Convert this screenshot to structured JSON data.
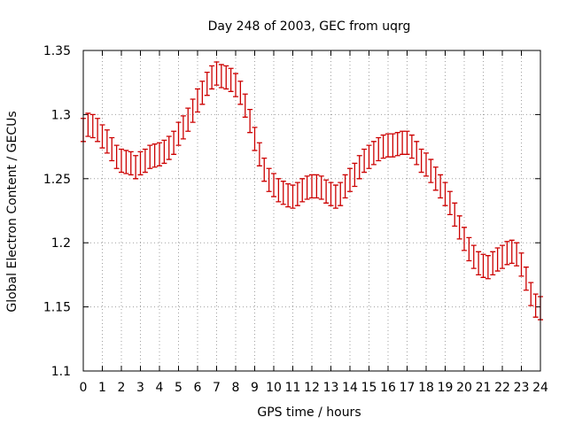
{
  "chart_data": {
    "type": "line",
    "title": "Day 248 of 2003, GEC from uqrg",
    "xlabel": "GPS time / hours",
    "ylabel": "Global Electron Content / GECUs",
    "xlim": [
      0,
      24
    ],
    "ylim": [
      1.1,
      1.35
    ],
    "xticks": [
      "0",
      "1",
      "2",
      "3",
      "4",
      "5",
      "6",
      "7",
      "8",
      "9",
      "10",
      "11",
      "12",
      "13",
      "14",
      "15",
      "16",
      "17",
      "18",
      "19",
      "20",
      "21",
      "22",
      "23",
      "24"
    ],
    "yticks": [
      "1.1",
      "1.15",
      "1.2",
      "1.25",
      "1.3",
      "1.35"
    ],
    "series_color": "#cc0000",
    "error_half_width": 0.009,
    "series": [
      {
        "name": "GEC",
        "x": [
          0.0,
          0.25,
          0.5,
          0.75,
          1.0,
          1.25,
          1.5,
          1.75,
          2.0,
          2.25,
          2.5,
          2.75,
          3.0,
          3.25,
          3.5,
          3.75,
          4.0,
          4.25,
          4.5,
          4.75,
          5.0,
          5.25,
          5.5,
          5.75,
          6.0,
          6.25,
          6.5,
          6.75,
          7.0,
          7.25,
          7.5,
          7.75,
          8.0,
          8.25,
          8.5,
          8.75,
          9.0,
          9.25,
          9.5,
          9.75,
          10.0,
          10.25,
          10.5,
          10.75,
          11.0,
          11.25,
          11.5,
          11.75,
          12.0,
          12.25,
          12.5,
          12.75,
          13.0,
          13.25,
          13.5,
          13.75,
          14.0,
          14.25,
          14.5,
          14.75,
          15.0,
          15.25,
          15.5,
          15.75,
          16.0,
          16.25,
          16.5,
          16.75,
          17.0,
          17.25,
          17.5,
          17.75,
          18.0,
          18.25,
          18.5,
          18.75,
          19.0,
          19.25,
          19.5,
          19.75,
          20.0,
          20.25,
          20.5,
          20.75,
          21.0,
          21.25,
          21.5,
          21.75,
          22.0,
          22.25,
          22.5,
          22.75,
          23.0,
          23.25,
          23.5,
          23.75,
          24.0
        ],
        "values": [
          1.288,
          1.292,
          1.291,
          1.288,
          1.283,
          1.279,
          1.273,
          1.267,
          1.264,
          1.263,
          1.262,
          1.259,
          1.262,
          1.264,
          1.267,
          1.268,
          1.269,
          1.271,
          1.274,
          1.278,
          1.285,
          1.29,
          1.296,
          1.303,
          1.311,
          1.317,
          1.324,
          1.329,
          1.332,
          1.33,
          1.329,
          1.327,
          1.323,
          1.317,
          1.307,
          1.295,
          1.281,
          1.269,
          1.257,
          1.249,
          1.245,
          1.241,
          1.239,
          1.237,
          1.236,
          1.238,
          1.241,
          1.243,
          1.244,
          1.244,
          1.243,
          1.24,
          1.238,
          1.236,
          1.238,
          1.244,
          1.249,
          1.253,
          1.259,
          1.264,
          1.267,
          1.27,
          1.273,
          1.275,
          1.276,
          1.276,
          1.277,
          1.278,
          1.278,
          1.275,
          1.27,
          1.264,
          1.261,
          1.256,
          1.25,
          1.244,
          1.238,
          1.231,
          1.222,
          1.212,
          1.203,
          1.195,
          1.189,
          1.184,
          1.182,
          1.181,
          1.184,
          1.187,
          1.189,
          1.192,
          1.193,
          1.191,
          1.183,
          1.172,
          1.16,
          1.151,
          1.149
        ]
      }
    ]
  }
}
